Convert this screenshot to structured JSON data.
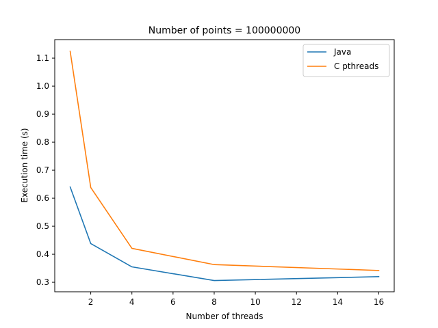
{
  "chart_data": {
    "type": "line",
    "title": "Number of points = 100000000",
    "xlabel": "Number of threads",
    "ylabel": "Execution time (s)",
    "xlim": [
      0.25,
      16.75
    ],
    "ylim": [
      0.266,
      1.166
    ],
    "xticks": [
      2,
      4,
      6,
      8,
      10,
      12,
      14,
      16
    ],
    "yticks": [
      0.3,
      0.4,
      0.5,
      0.6,
      0.7,
      0.8,
      0.9,
      1.0,
      1.1
    ],
    "grid": false,
    "legend": "top-right",
    "x": [
      1,
      2,
      4,
      8,
      16
    ],
    "series": [
      {
        "name": "Java",
        "color": "#1f77b4",
        "values": [
          0.64,
          0.438,
          0.355,
          0.306,
          0.32
        ]
      },
      {
        "name": "C pthreads",
        "color": "#ff7f0e",
        "values": [
          1.124,
          0.638,
          0.421,
          0.363,
          0.342
        ]
      }
    ]
  }
}
